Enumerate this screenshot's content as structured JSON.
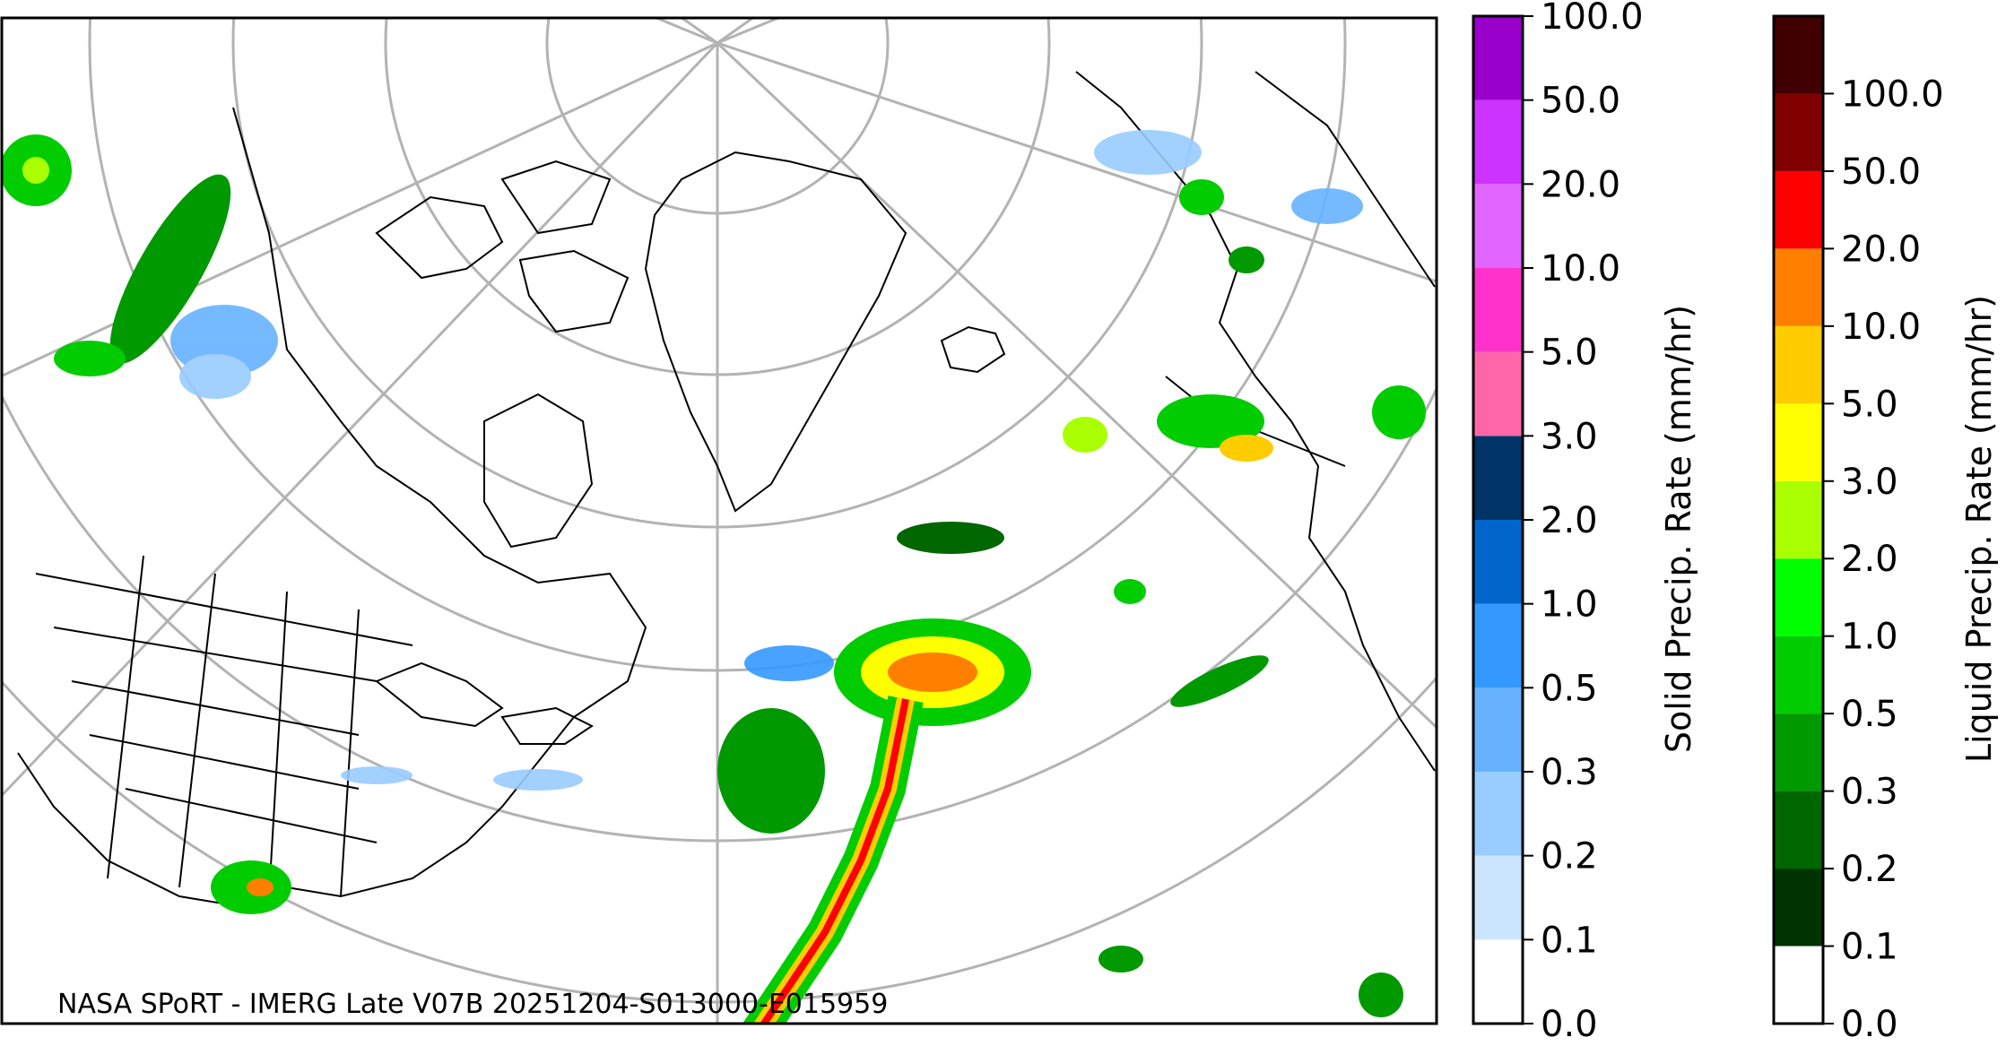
{
  "credit": "NASA SPoRT - IMERG Late V07B 20251204-S013000-E015959",
  "colorbars": [
    {
      "id": "solid",
      "title": "Solid Precip. Rate (mm/hr)",
      "levels": [
        "0.0",
        "0.1",
        "0.2",
        "0.3",
        "0.5",
        "1.0",
        "2.0",
        "3.0",
        "5.0",
        "10.0",
        "20.0",
        "50.0",
        "100.0"
      ],
      "colors": [
        "#ffffff",
        "#cce6ff",
        "#99ccff",
        "#66b2ff",
        "#3399ff",
        "#0066cc",
        "#003366",
        "#ff66aa",
        "#ff33cc",
        "#e066ff",
        "#cc33ff",
        "#9900cc"
      ]
    },
    {
      "id": "liquid",
      "title": "Liquid Precip. Rate (mm/hr)",
      "levels": [
        "0.0",
        "0.1",
        "0.2",
        "0.3",
        "0.5",
        "1.0",
        "2.0",
        "3.0",
        "5.0",
        "10.0",
        "20.0",
        "50.0",
        "100.0"
      ],
      "colors": [
        "#ffffff",
        "#003300",
        "#006600",
        "#009900",
        "#00cc00",
        "#00ff00",
        "#aaff00",
        "#ffff00",
        "#ffcc00",
        "#ff8000",
        "#ff0000",
        "#800000",
        "#400000"
      ]
    }
  ]
}
